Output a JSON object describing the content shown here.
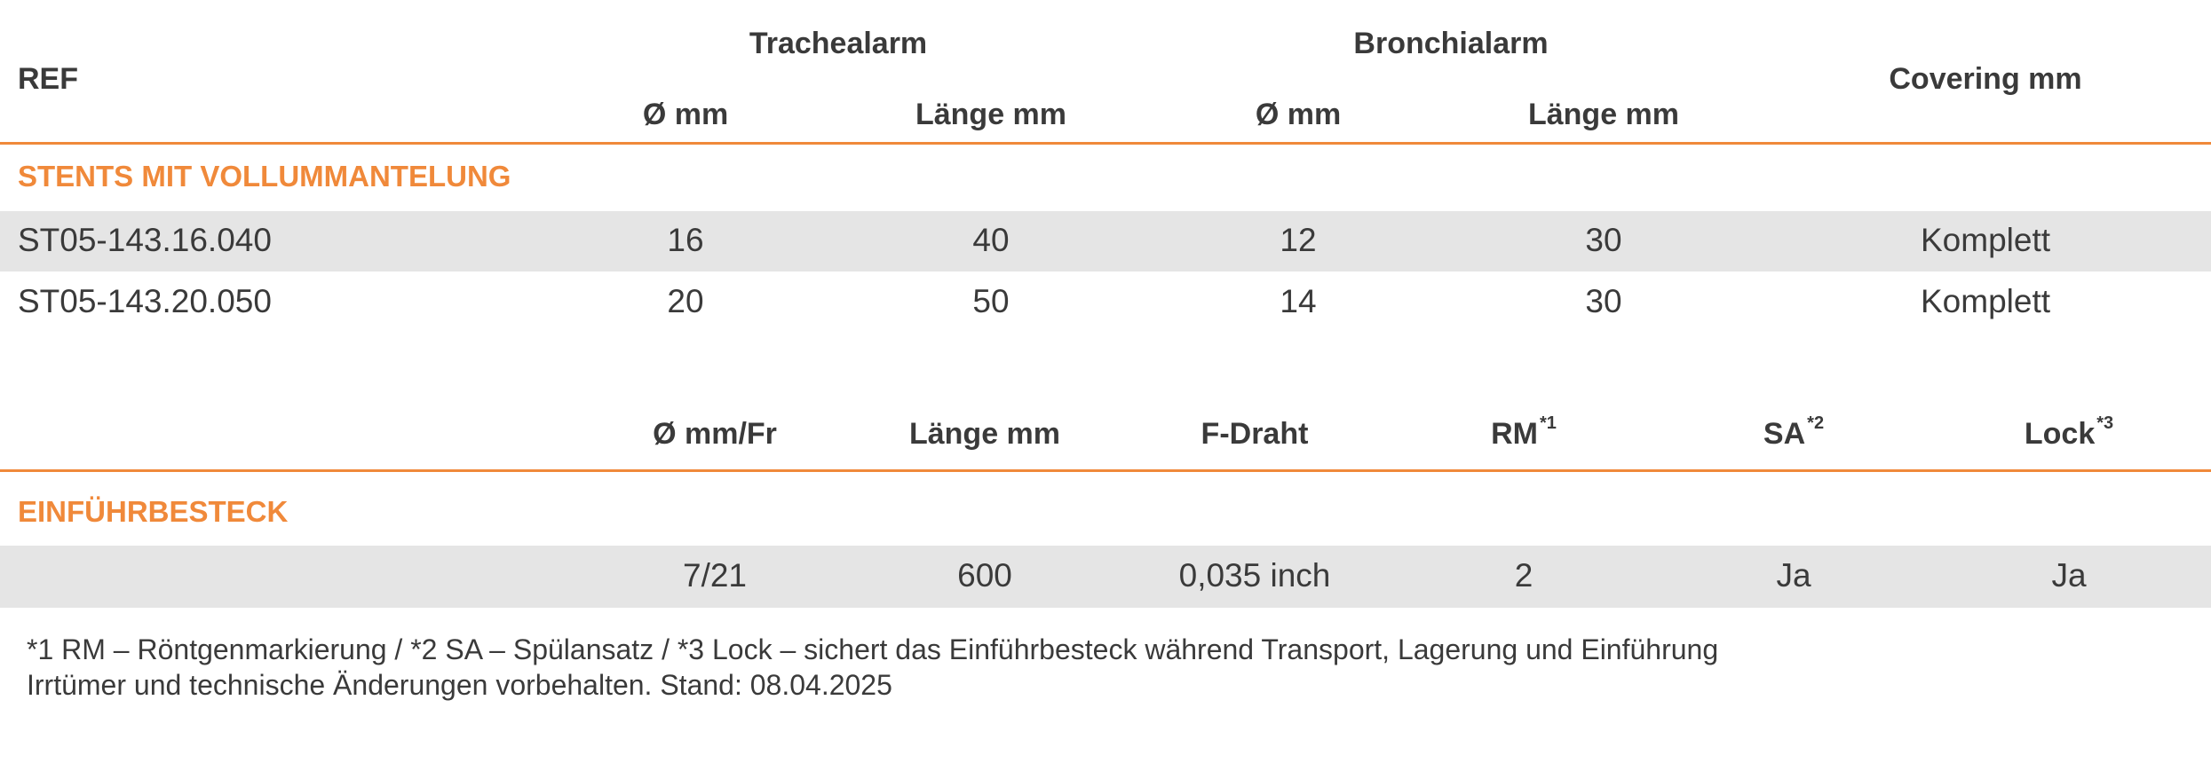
{
  "table1": {
    "ref_header": "REF",
    "group_trachea": "Trachealarm",
    "group_bronchial": "Bronchialarm",
    "covering_header": "Covering mm",
    "sub_diameter_1": "Ø mm",
    "sub_length_1": "Länge mm",
    "sub_diameter_2": "Ø mm",
    "sub_length_2": "Länge mm",
    "section_label": "STENTS MIT VOLLUMMANTELUNG",
    "rows": [
      {
        "ref": "ST05-143.16.040",
        "trachea_diameter": "16",
        "trachea_length": "40",
        "bronchial_diameter": "12",
        "bronchial_length": "30",
        "covering": "Komplett"
      },
      {
        "ref": "ST05-143.20.050",
        "trachea_diameter": "20",
        "trachea_length": "50",
        "bronchial_diameter": "14",
        "bronchial_length": "30",
        "covering": "Komplett"
      }
    ]
  },
  "table2": {
    "col_diameter": "Ø mm/Fr",
    "col_length": "Länge mm",
    "col_wire": "F-Draht",
    "col_rm": "RM",
    "col_rm_note": "*1",
    "col_sa": "SA",
    "col_sa_note": "*2",
    "col_lock": "Lock",
    "col_lock_note": "*3",
    "section_label": "EINFÜHRBESTECK",
    "row": {
      "diameter": "7/21",
      "length": "600",
      "wire": "0,035 inch",
      "rm": "2",
      "sa": "Ja",
      "lock": "Ja"
    }
  },
  "footnotes": {
    "line1": "*1 RM – Röntgenmarkierung / *2 SA – Spülansatz / *3 Lock – sichert das Einführbesteck während Transport, Lagerung und Einführung",
    "line2": "Irrtümer und technische Änderungen vorbehalten. Stand: 08.04.2025"
  },
  "colors": {
    "accent": "#f0893a",
    "row_shade": "#e5e5e5",
    "text": "#3a3a3a"
  }
}
